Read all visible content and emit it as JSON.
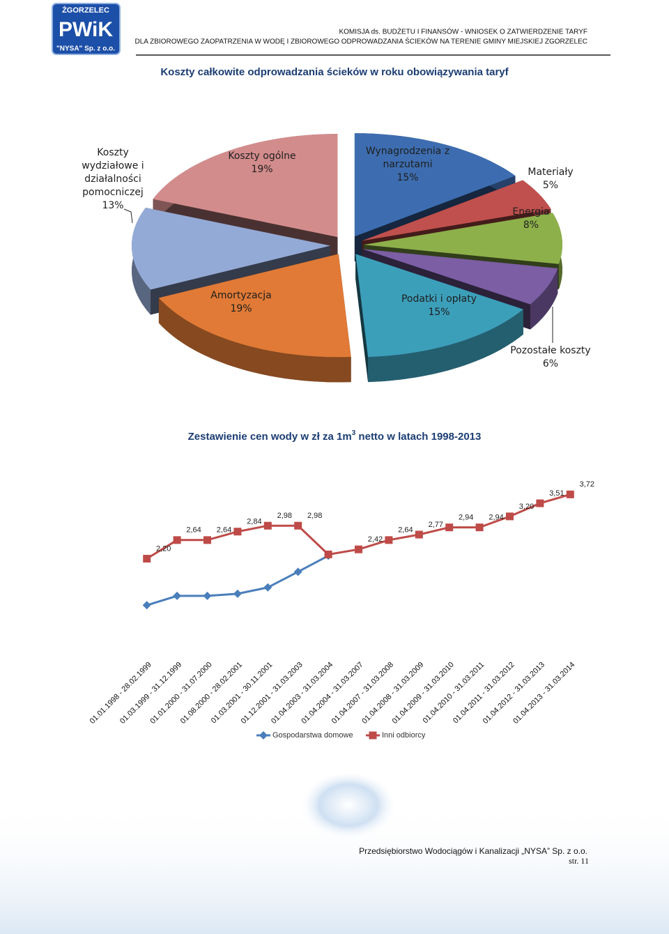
{
  "header": {
    "logo_top": "ŻGORZELEC",
    "logo_main": "PWiK",
    "logo_bottom": "\"NYSA\" Sp. z o.o.",
    "line1": "KOMISJA ds. BUDŻETU I FINANSÓW  - WNIOSEK O ZATWIERDZENIE TARYF",
    "line2": "DLA ZBIOROWEGO ZAOPATRZENIA W WODĘ I ZBIOROWEGO ODPROWADZANIA ŚCIEKÓW NA TERENIE GMINY MIEJSKIEJ ZGORZELEC"
  },
  "chart_data": [
    {
      "type": "pie",
      "title": "Koszty całkowite odprowadzania ścieków w roku obowiązywania taryf",
      "categories": [
        "Wynagrodzenia z narzutami",
        "Materiały",
        "Energia",
        "Pozostałe koszty",
        "Podatki i opłaty",
        "Amortyzacja",
        "Koszty wydziałowe i działalności pomocniczej",
        "Koszty ogólne"
      ],
      "values": [
        15,
        5,
        8,
        6,
        15,
        19,
        13,
        19
      ],
      "value_labels": [
        "15%",
        "5%",
        "8%",
        "6%",
        "15%",
        "19%",
        "13%",
        "19%"
      ],
      "colors": [
        "#3d6db0",
        "#c0504d",
        "#8db04a",
        "#7b5ea3",
        "#3c9fba",
        "#e07a36",
        "#94aad6",
        "#d38c8c"
      ]
    },
    {
      "type": "line",
      "title_parts": [
        "Zestawienie cen wody w zł za 1m",
        "3",
        " netto  w latach 1998-2013"
      ],
      "categories": [
        "01.01.1998 - 28.02.1999",
        "01.03.1999 - 31.12.1999",
        "01.01.2000 - 31.07.2000",
        "01.08.2000 - 28.02.2001",
        "01.03.2001 - 30.11.2001",
        "01.12.2001 - 31.03.2003",
        "01.04.2003 - 31.03.2004",
        "01.04.2004 - 31.03.2007",
        "01.04.2007 - 31.03.2008",
        "01.04.2008 - 31.03.2009",
        "01.04.2009 - 31.03.2010",
        "01.04.2010 - 31.03.2011",
        "01.04.2011 - 31.03.2012",
        "01.04.2012 - 31.03.2013",
        "01.04.2013 - 31.03.2014"
      ],
      "ylim": [
        0,
        4.5
      ],
      "series": [
        {
          "name": "Gospodarstwa domowe",
          "color": "#4a7ebb",
          "marker": "diamond",
          "values": [
            1.1,
            1.32,
            1.32,
            1.37,
            1.52,
            1.89,
            2.27,
            null,
            null,
            null,
            null,
            null,
            null,
            null,
            null
          ]
        },
        {
          "name": "Inni odbiorcy",
          "color": "#be4b48",
          "marker": "square",
          "values": [
            2.2,
            2.64,
            2.64,
            2.84,
            2.98,
            2.98,
            2.3,
            2.42,
            2.64,
            2.77,
            2.94,
            2.94,
            3.2,
            3.51,
            3.72
          ],
          "value_labels": [
            "2,20",
            "2,64",
            "2,64",
            "2,84",
            "2,98",
            "2,98",
            null,
            "2,42",
            "2,64",
            "2,77",
            "2,94",
            "2,94",
            "3,20",
            "3,51",
            "3,72"
          ]
        }
      ]
    }
  ],
  "footer": {
    "company": "Przedsiębiorstwo Wodociągów i Kanalizacji „NYSA” Sp. z o.o.",
    "page": "str. 11"
  }
}
